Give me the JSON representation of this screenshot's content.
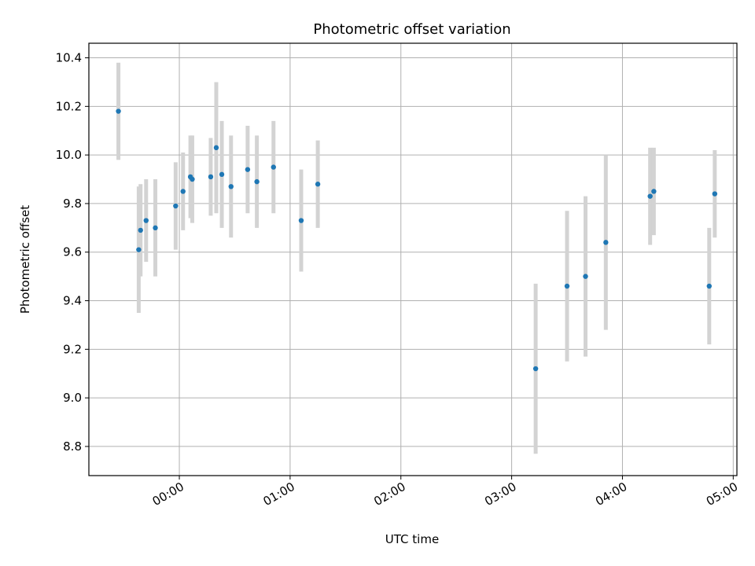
{
  "chart_data": {
    "type": "scatter",
    "title": "Photometric offset variation",
    "xlabel": "UTC time",
    "ylabel": "Photometric offset",
    "x_ticks": [
      "00:00",
      "01:00",
      "02:00",
      "03:00",
      "04:00",
      "05:00"
    ],
    "x_tick_minutes": [
      0,
      60,
      120,
      180,
      240,
      300
    ],
    "y_ticks": [
      "8.8",
      "9.0",
      "9.2",
      "9.4",
      "9.6",
      "9.8",
      "10.0",
      "10.2",
      "10.4"
    ],
    "y_tick_values": [
      8.8,
      9.0,
      9.2,
      9.4,
      9.6,
      9.8,
      10.0,
      10.2,
      10.4
    ],
    "xlim_minutes": [
      -49,
      302
    ],
    "ylim": [
      8.68,
      10.46
    ],
    "grid": true,
    "colors": {
      "point": "#1f77b4",
      "errorbar": "#d3d3d3",
      "grid": "#b0b0b0"
    },
    "series": [
      {
        "points": [
          {
            "t": "23:27",
            "y": 10.18,
            "err": 0.2
          },
          {
            "t": "23:38",
            "y": 9.61,
            "err": 0.26
          },
          {
            "t": "23:39",
            "y": 9.69,
            "err": 0.19
          },
          {
            "t": "23:42",
            "y": 9.73,
            "err": 0.17
          },
          {
            "t": "23:47",
            "y": 9.7,
            "err": 0.2
          },
          {
            "t": "23:58",
            "y": 9.79,
            "err": 0.18
          },
          {
            "t": "00:02",
            "y": 9.85,
            "err": 0.16
          },
          {
            "t": "00:06",
            "y": 9.91,
            "err": 0.17
          },
          {
            "t": "00:07",
            "y": 9.9,
            "err": 0.18
          },
          {
            "t": "00:17",
            "y": 9.91,
            "err": 0.16
          },
          {
            "t": "00:20",
            "y": 10.03,
            "err": 0.27
          },
          {
            "t": "00:23",
            "y": 9.92,
            "err": 0.22
          },
          {
            "t": "00:28",
            "y": 9.87,
            "err": 0.21
          },
          {
            "t": "00:37",
            "y": 9.94,
            "err": 0.18
          },
          {
            "t": "00:42",
            "y": 9.89,
            "err": 0.19
          },
          {
            "t": "00:51",
            "y": 9.95,
            "err": 0.19
          },
          {
            "t": "01:06",
            "y": 9.73,
            "err": 0.21
          },
          {
            "t": "01:15",
            "y": 9.88,
            "err": 0.18
          },
          {
            "t": "03:13",
            "y": 9.12,
            "err": 0.35
          },
          {
            "t": "03:30",
            "y": 9.46,
            "err": 0.31
          },
          {
            "t": "03:40",
            "y": 9.5,
            "err": 0.33
          },
          {
            "t": "03:51",
            "y": 9.64,
            "err": 0.36
          },
          {
            "t": "04:15",
            "y": 9.83,
            "err": 0.2
          },
          {
            "t": "04:17",
            "y": 9.85,
            "err": 0.18
          },
          {
            "t": "04:47",
            "y": 9.46,
            "err": 0.24
          },
          {
            "t": "04:50",
            "y": 9.84,
            "err": 0.18
          }
        ]
      }
    ]
  }
}
